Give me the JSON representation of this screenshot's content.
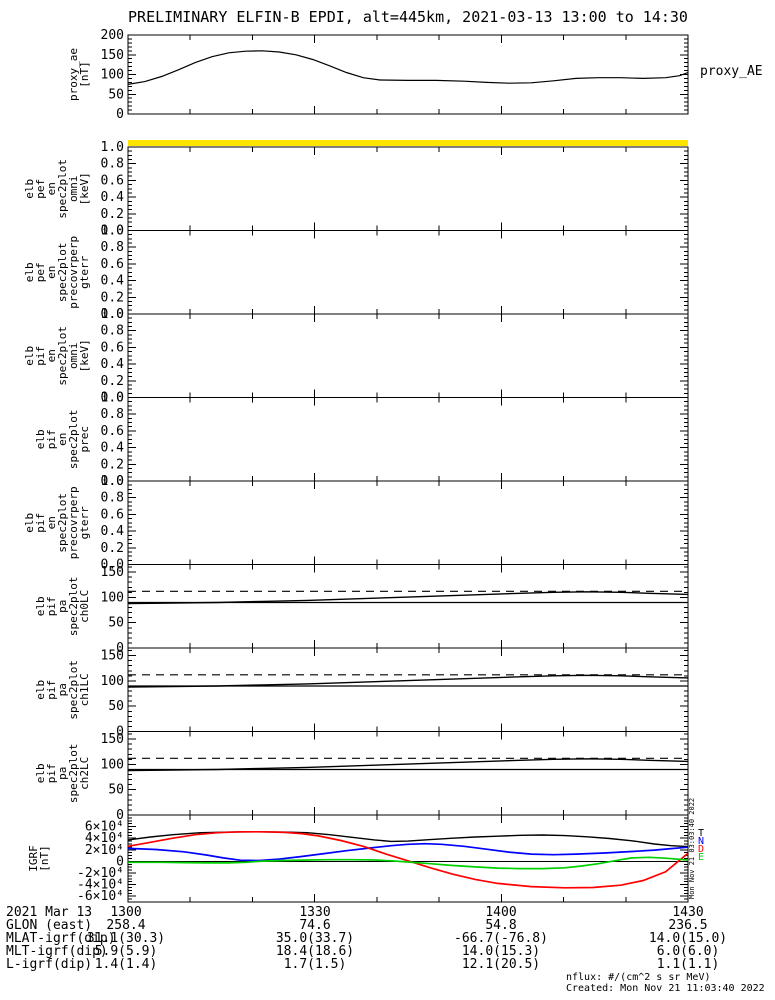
{
  "title": "PRELIMINARY ELFIN-B EPDI, alt=445km, 2021-03-13 13:00 to 14:30",
  "right_labels": {
    "proxy_ae": "proxy_AE"
  },
  "watermark": "Mon Nov 21 03:03:40 2022",
  "footer": {
    "nflux": "nflux: #/(cm^2 s sr MeV)",
    "created": "Created: Mon Nov 21 11:03:40 2022"
  },
  "bottom_axis": {
    "row_labels": [
      "2021 Mar 13",
      "GLON (east)",
      "MLAT-igrf(dip)",
      "MLT-igrf(dip)",
      "L-igrf(dip)"
    ],
    "columns": [
      [
        "1300",
        "258.4",
        "31.1(30.3)",
        "5.9(5.9)",
        "1.4(1.4)"
      ],
      [
        "1330",
        "74.6",
        "35.0(33.7)",
        "18.4(18.6)",
        "1.7(1.5)"
      ],
      [
        "1400",
        "54.8",
        "-66.7(-76.8)",
        "14.0(15.3)",
        "12.1(20.5)"
      ],
      [
        "1430",
        "236.5",
        "14.0(15.0)",
        "6.0(6.0)",
        "1.1(1.1)"
      ]
    ]
  },
  "chart_data": [
    {
      "name": "proxy_ae",
      "type": "line",
      "ylabel_words": [
        "proxy_ae",
        "[nT]"
      ],
      "ylim": [
        0,
        200
      ],
      "yminor": 10,
      "yticks": [
        0,
        50,
        100,
        150,
        200
      ],
      "ytick_labels": [
        "0",
        "50",
        "100",
        "150",
        "200"
      ],
      "right_label": "proxy_AE",
      "series": [
        {
          "name": "proxy_AE",
          "color": "#000000",
          "style": "solid",
          "width": 1.2,
          "x": [
            0,
            0.03,
            0.06,
            0.09,
            0.12,
            0.15,
            0.18,
            0.21,
            0.24,
            0.27,
            0.3,
            0.33,
            0.36,
            0.39,
            0.42,
            0.45,
            0.5,
            0.55,
            0.6,
            0.64,
            0.68,
            0.72,
            0.76,
            0.8,
            0.84,
            0.88,
            0.92,
            0.96,
            0.985,
            1.0
          ],
          "y": [
            75,
            82,
            95,
            112,
            130,
            145,
            155,
            159,
            160,
            157,
            150,
            138,
            122,
            105,
            92,
            86,
            85,
            85,
            83,
            80,
            78,
            79,
            84,
            90,
            92,
            92,
            90,
            92,
            97,
            105
          ]
        }
      ]
    },
    {
      "name": "elb_pef_en_spec2plot_omni",
      "type": "line",
      "ylabel_words": [
        "elb",
        "pef",
        "en",
        "spec2plot",
        "omni",
        "[keV]"
      ],
      "ylim": [
        0,
        1
      ],
      "yminor": 0.05,
      "yticks": [
        0,
        0.2,
        0.4,
        0.6,
        0.8,
        1.0
      ],
      "ytick_labels": [
        "0.0",
        "0.2",
        "0.4",
        "0.6",
        "0.8",
        "1.0"
      ],
      "top_bar": "#ffe400",
      "series": []
    },
    {
      "name": "elb_pef_en_spec2plot_precovrperp_gterr",
      "type": "line",
      "ylabel_words": [
        "elb",
        "pef",
        "en",
        "spec2plot",
        "precovrperp",
        "gterr"
      ],
      "ylim": [
        0,
        1
      ],
      "yminor": 0.05,
      "yticks": [
        0,
        0.2,
        0.4,
        0.6,
        0.8,
        1.0
      ],
      "ytick_labels": [
        "0.0",
        "0.2",
        "0.4",
        "0.6",
        "0.8",
        "1.0"
      ],
      "series": []
    },
    {
      "name": "elb_pif_en_spec2plot_omni",
      "type": "line",
      "ylabel_words": [
        "elb",
        "pif",
        "en",
        "spec2plot",
        "omni",
        "[keV]"
      ],
      "ylim": [
        0,
        1
      ],
      "yminor": 0.05,
      "yticks": [
        0,
        0.2,
        0.4,
        0.6,
        0.8,
        1.0
      ],
      "ytick_labels": [
        "0.0",
        "0.2",
        "0.4",
        "0.6",
        "0.8",
        "1.0"
      ],
      "series": []
    },
    {
      "name": "elb_pif_en_spec2plot_prec",
      "type": "line",
      "ylabel_words": [
        "elb",
        "pif",
        "en",
        "spec2plot",
        "prec"
      ],
      "ylim": [
        0,
        1
      ],
      "yminor": 0.05,
      "yticks": [
        0,
        0.2,
        0.4,
        0.6,
        0.8,
        1.0
      ],
      "ytick_labels": [
        "0.0",
        "0.2",
        "0.4",
        "0.6",
        "0.8",
        "1.0"
      ],
      "series": []
    },
    {
      "name": "elb_pif_en_spec2plot_precovrperp_gterr",
      "type": "line",
      "ylabel_words": [
        "elb",
        "pif",
        "en",
        "spec2plot",
        "precovrperp",
        "gterr"
      ],
      "ylim": [
        0,
        1
      ],
      "yminor": 0.05,
      "yticks": [
        0,
        0.2,
        0.4,
        0.6,
        0.8,
        1.0
      ],
      "ytick_labels": [
        "0.0",
        "0.2",
        "0.4",
        "0.6",
        "0.8",
        "1.0"
      ],
      "series": []
    },
    {
      "name": "elb_pif_pa_spec2plot_ch0LC",
      "type": "line",
      "ylabel_words": [
        "elb",
        "pif",
        "pa",
        "spec2plot",
        "ch0LC"
      ],
      "ylim": [
        0,
        165
      ],
      "yminor": 10,
      "yticks": [
        0,
        50,
        100,
        150
      ],
      "ytick_labels": [
        "0",
        "50",
        "100",
        "150"
      ],
      "series": [
        {
          "name": "ninety_deg",
          "color": "#000000",
          "style": "solid",
          "width": 1.2,
          "x": [
            0,
            1
          ],
          "y": [
            90,
            90
          ]
        },
        {
          "name": "loss_cone",
          "color": "#000000",
          "style": "solid",
          "width": 1.4,
          "x": [
            0,
            0.08,
            0.16,
            0.24,
            0.32,
            0.4,
            0.48,
            0.56,
            0.64,
            0.7,
            0.76,
            0.82,
            0.88,
            0.93,
            1.0
          ],
          "y": [
            88,
            89,
            90,
            92,
            94,
            97,
            100,
            103,
            106,
            108,
            110,
            111,
            110,
            108,
            106
          ]
        },
        {
          "name": "anti_loss_cone",
          "color": "#000000",
          "style": "dash",
          "width": 1.2,
          "x": [
            0,
            1
          ],
          "y": [
            112,
            112
          ]
        }
      ]
    },
    {
      "name": "elb_pif_pa_spec2plot_ch1LC",
      "type": "line",
      "ylabel_words": [
        "elb",
        "pif",
        "pa",
        "spec2plot",
        "ch1LC"
      ],
      "ylim": [
        0,
        165
      ],
      "yminor": 10,
      "yticks": [
        0,
        50,
        100,
        150
      ],
      "ytick_labels": [
        "0",
        "50",
        "100",
        "150"
      ],
      "series": [
        {
          "name": "ninety_deg",
          "color": "#000000",
          "style": "solid",
          "width": 1.2,
          "x": [
            0,
            1
          ],
          "y": [
            90,
            90
          ]
        },
        {
          "name": "loss_cone",
          "color": "#000000",
          "style": "solid",
          "width": 1.4,
          "x": [
            0,
            0.08,
            0.16,
            0.24,
            0.32,
            0.4,
            0.48,
            0.56,
            0.64,
            0.7,
            0.76,
            0.82,
            0.88,
            0.93,
            1.0
          ],
          "y": [
            88,
            89,
            90,
            92,
            94,
            97,
            100,
            103,
            106,
            108,
            110,
            111,
            110,
            108,
            106
          ]
        },
        {
          "name": "anti_loss_cone",
          "color": "#000000",
          "style": "dash",
          "width": 1.2,
          "x": [
            0,
            1
          ],
          "y": [
            112,
            112
          ]
        }
      ]
    },
    {
      "name": "elb_pif_pa_spec2plot_ch2LC",
      "type": "line",
      "ylabel_words": [
        "elb",
        "pif",
        "pa",
        "spec2plot",
        "ch2LC"
      ],
      "ylim": [
        0,
        165
      ],
      "yminor": 10,
      "yticks": [
        0,
        50,
        100,
        150
      ],
      "ytick_labels": [
        "0",
        "50",
        "100",
        "150"
      ],
      "series": [
        {
          "name": "ninety_deg",
          "color": "#000000",
          "style": "solid",
          "width": 1.2,
          "x": [
            0,
            1
          ],
          "y": [
            90,
            90
          ]
        },
        {
          "name": "loss_cone",
          "color": "#000000",
          "style": "solid",
          "width": 1.4,
          "x": [
            0,
            0.08,
            0.16,
            0.24,
            0.32,
            0.4,
            0.48,
            0.56,
            0.64,
            0.7,
            0.76,
            0.82,
            0.88,
            0.93,
            1.0
          ],
          "y": [
            88,
            89,
            90,
            92,
            94,
            97,
            100,
            103,
            106,
            108,
            110,
            111,
            110,
            108,
            106
          ]
        },
        {
          "name": "anti_loss_cone",
          "color": "#000000",
          "style": "dash",
          "width": 1.2,
          "x": [
            0,
            1
          ],
          "y": [
            112,
            112
          ]
        }
      ]
    },
    {
      "name": "IGRF",
      "type": "line",
      "ylabel_words": [
        "IGRF",
        "[nT]"
      ],
      "ylim": [
        -70000,
        80000
      ],
      "yminor": 5000,
      "yticks": [
        60000,
        40000,
        20000,
        0,
        -20000,
        -40000,
        -60000
      ],
      "ytick_labels": [
        "6×10⁴",
        "4×10⁴",
        "2×10⁴",
        "0",
        "-2×10⁴",
        "-4×10⁴",
        "-6×10⁴"
      ],
      "zero_line": true,
      "legend": true,
      "series": [
        {
          "name": "T",
          "color": "#000000",
          "style": "solid",
          "width": 1.4,
          "x": [
            0,
            0.04,
            0.08,
            0.13,
            0.18,
            0.23,
            0.28,
            0.32,
            0.36,
            0.4,
            0.44,
            0.47,
            0.5,
            0.54,
            0.58,
            0.62,
            0.66,
            0.7,
            0.74,
            0.78,
            0.82,
            0.86,
            0.9,
            0.94,
            0.97,
            1.0
          ],
          "y": [
            37000,
            42000,
            46000,
            49500,
            50500,
            51000,
            50500,
            49500,
            46000,
            41500,
            37000,
            34500,
            35000,
            37500,
            40000,
            42000,
            43500,
            45000,
            45500,
            44500,
            42500,
            39500,
            35500,
            30000,
            27000,
            25500
          ]
        },
        {
          "name": "N",
          "color": "#0000ff",
          "style": "solid",
          "width": 1.7,
          "x": [
            0,
            0.05,
            0.1,
            0.14,
            0.17,
            0.2,
            0.235,
            0.27,
            0.31,
            0.35,
            0.39,
            0.43,
            0.47,
            0.5,
            0.53,
            0.56,
            0.6,
            0.64,
            0.68,
            0.72,
            0.76,
            0.8,
            0.85,
            0.9,
            0.94,
            0.97,
            1.0
          ],
          "y": [
            22500,
            20500,
            16500,
            11000,
            6000,
            2000,
            1500,
            4000,
            8500,
            13500,
            18500,
            23000,
            27000,
            29500,
            30500,
            29500,
            26000,
            21000,
            16000,
            12500,
            11500,
            12500,
            14500,
            17000,
            19500,
            22000,
            24500
          ]
        },
        {
          "name": "D",
          "color": "#ff0000",
          "style": "solid",
          "width": 1.7,
          "x": [
            0,
            0.04,
            0.08,
            0.12,
            0.16,
            0.2,
            0.24,
            0.28,
            0.31,
            0.34,
            0.38,
            0.42,
            0.46,
            0.5,
            0.54,
            0.58,
            0.62,
            0.66,
            0.72,
            0.78,
            0.83,
            0.88,
            0.92,
            0.96,
            1.0
          ],
          "y": [
            26000,
            33000,
            40000,
            46000,
            49500,
            51000,
            51000,
            50000,
            48000,
            44000,
            36000,
            26000,
            13000,
            1000,
            -11000,
            -22000,
            -31000,
            -38000,
            -43500,
            -45500,
            -45000,
            -41000,
            -33000,
            -18000,
            14000
          ]
        },
        {
          "name": "E",
          "color": "#00d000",
          "style": "solid",
          "width": 1.7,
          "x": [
            0,
            0.06,
            0.1,
            0.14,
            0.18,
            0.21,
            0.24,
            0.28,
            0.32,
            0.36,
            0.4,
            0.44,
            0.47,
            0.5,
            0.54,
            0.58,
            0.62,
            0.66,
            0.7,
            0.74,
            0.78,
            0.81,
            0.84,
            0.86,
            0.88,
            0.9,
            0.93,
            0.96,
            1.0
          ],
          "y": [
            -1500,
            -1500,
            -2000,
            -2500,
            -2500,
            -1500,
            500,
            1500,
            2500,
            3000,
            3000,
            2500,
            1000,
            -1000,
            -4000,
            -7000,
            -9500,
            -11500,
            -12500,
            -12500,
            -11000,
            -8000,
            -4000,
            -500,
            3000,
            6000,
            7000,
            5500,
            2500
          ]
        }
      ]
    }
  ]
}
